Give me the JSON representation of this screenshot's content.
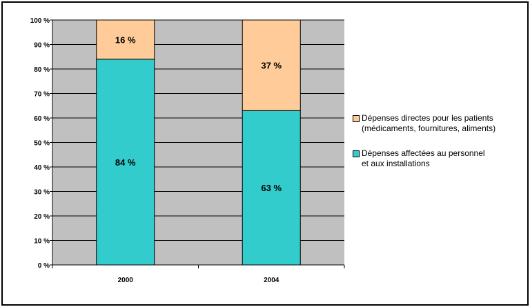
{
  "chart_data": {
    "type": "bar",
    "stacked": true,
    "categories": [
      "2000",
      "2004"
    ],
    "series": [
      {
        "name": "Dépenses affectées au personnel et aux installations",
        "name_lines": [
          "Dépenses affectées au personnel",
          "et aux installations"
        ],
        "values": [
          84,
          63
        ],
        "labels": [
          "84 %",
          "63 %"
        ],
        "color": "#33CCCC"
      },
      {
        "name": "Dépenses directes pour les patients (médicaments, fournitures, aliments)",
        "name_lines": [
          "Dépenses directes pour les patients",
          "(médicaments, fournitures, aliments)"
        ],
        "values": [
          16,
          37
        ],
        "labels": [
          "16 %",
          "37 %"
        ],
        "color": "#FFCC99"
      }
    ],
    "ylim": [
      0,
      100
    ],
    "yticks": [
      0,
      10,
      20,
      30,
      40,
      50,
      60,
      70,
      80,
      90,
      100
    ],
    "ytick_labels": [
      "0 %",
      "10 %",
      "20 %",
      "30 %",
      "40 %",
      "50 %",
      "60 %",
      "70 %",
      "80 %",
      "90 %",
      "100 %"
    ],
    "grid": true,
    "plot_background": "#C0C0C0",
    "legend_position": "right"
  }
}
